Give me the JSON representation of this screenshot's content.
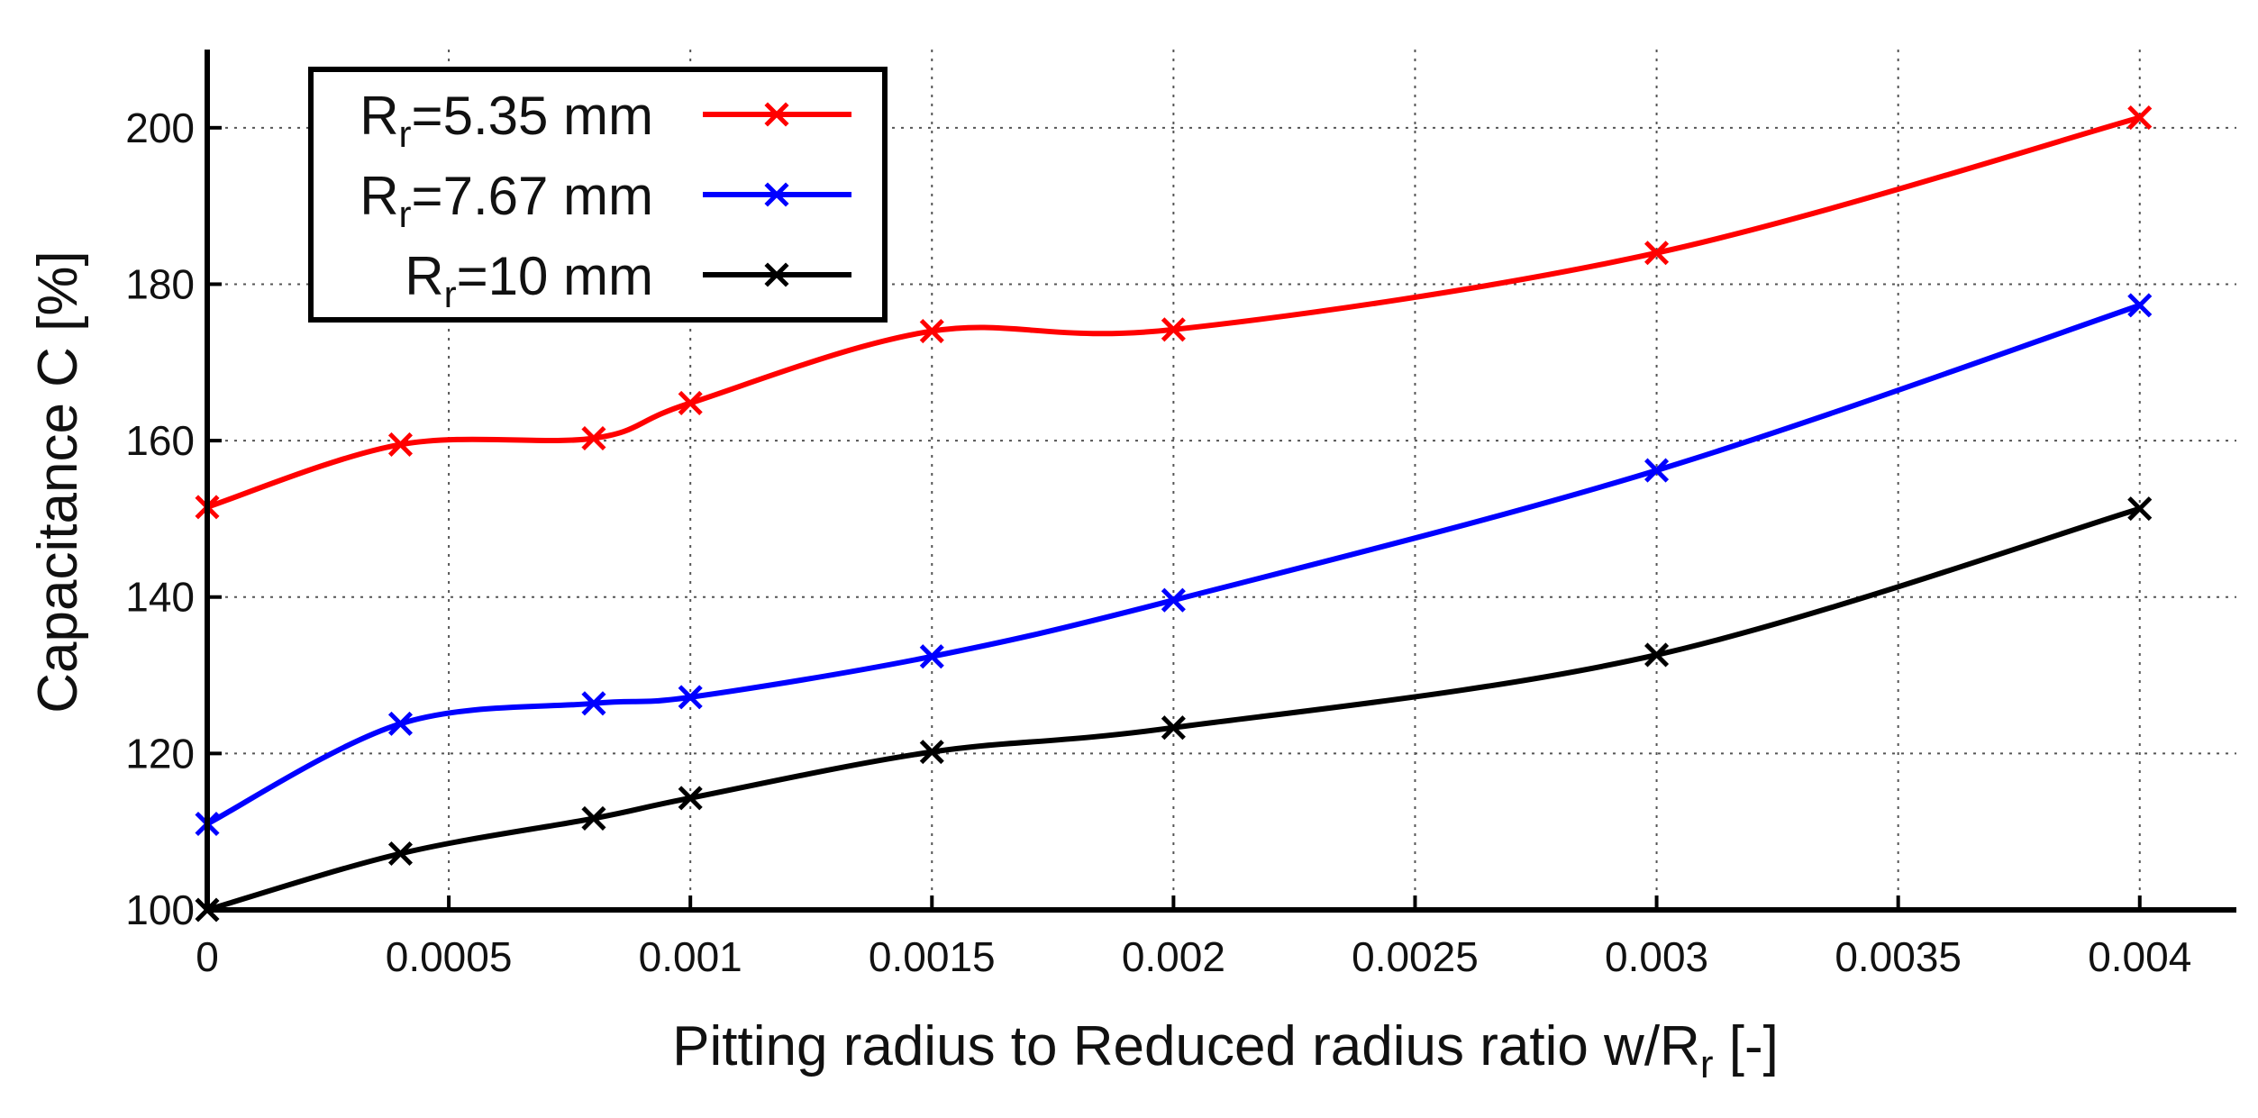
{
  "chart_data": {
    "type": "line",
    "title": "",
    "xlabel": "Pitting radius to Reduced radius ratio w/R",
    "xlabel_subscript": "r",
    "xlabel_suffix": " [-]",
    "ylabel": "Capacitance C [%]",
    "xlim": [
      0,
      0.0042
    ],
    "ylim": [
      100,
      210
    ],
    "x_ticks": [
      0,
      0.0005,
      0.001,
      0.0015,
      0.002,
      0.0025,
      0.003,
      0.0035,
      0.004
    ],
    "x_tick_labels": [
      "0",
      "0.0005",
      "0.001",
      "0.0015",
      "0.002",
      "0.0025",
      "0.003",
      "0.0035",
      "0.004"
    ],
    "y_ticks": [
      100,
      120,
      140,
      160,
      180,
      200
    ],
    "y_tick_labels": [
      "100",
      "120",
      "140",
      "160",
      "180",
      "200"
    ],
    "grid": true,
    "legend_position": "top-left",
    "series": [
      {
        "name": "R",
        "name_subscript": "r",
        "name_suffix": "=5.35 mm",
        "color": "#ff0000",
        "x": [
          0,
          0.0004,
          0.0008,
          0.001,
          0.0015,
          0.002,
          0.003,
          0.004
        ],
        "values": [
          151.5,
          159.5,
          160.3,
          164.8,
          174.0,
          174.2,
          184.0,
          201.3
        ]
      },
      {
        "name": "R",
        "name_subscript": "r",
        "name_suffix": "=7.67 mm",
        "color": "#0000ff",
        "x": [
          0,
          0.0004,
          0.0008,
          0.001,
          0.0015,
          0.002,
          0.003,
          0.004
        ],
        "values": [
          111.0,
          123.8,
          126.4,
          127.2,
          132.4,
          139.6,
          156.2,
          177.3
        ]
      },
      {
        "name": "R",
        "name_subscript": "r",
        "name_suffix": "=10 mm",
        "color": "#000000",
        "x": [
          0,
          0.0004,
          0.0008,
          0.001,
          0.0015,
          0.002,
          0.003,
          0.004
        ],
        "values": [
          100.0,
          107.2,
          111.7,
          114.3,
          120.2,
          123.3,
          132.6,
          151.3
        ]
      }
    ]
  }
}
